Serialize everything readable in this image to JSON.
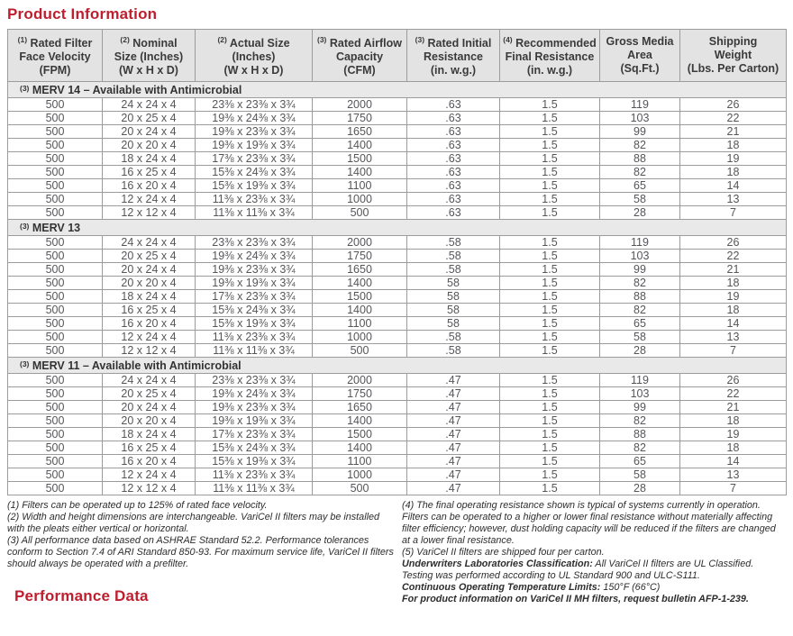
{
  "accent_color": "#be1e2d",
  "page": {
    "title": "Product Information"
  },
  "table": {
    "columns": [
      {
        "sup": "(1)",
        "label": "Rated Filter\nFace Velocity\n(FPM)"
      },
      {
        "sup": "(2)",
        "label": "Nominal\nSize (Inches)\n(W x H x D)"
      },
      {
        "sup": "(2)",
        "label": "Actual Size\n(Inches)\n(W x H x D)"
      },
      {
        "sup": "(3)",
        "label": "Rated Airflow\nCapacity\n(CFM)"
      },
      {
        "sup": "(3)",
        "label": "Rated Initial\nResistance\n(in. w.g.)"
      },
      {
        "sup": "(4)",
        "label": "Recommended\nFinal Resistance\n(in. w.g.)"
      },
      {
        "sup": "",
        "label": "Gross Media\nArea\n(Sq.Ft.)"
      },
      {
        "sup": "",
        "label": "Shipping\nWeight\n(Lbs. Per Carton)"
      }
    ],
    "sections": [
      {
        "sup": "(3)",
        "title": "MERV 14 – Available with Antimicrobial",
        "rows": [
          [
            "500",
            "24 x 24 x 4",
            "23⅜ x 23⅜ x 3¾",
            "2000",
            ".63",
            "1.5",
            "119",
            "26"
          ],
          [
            "500",
            "20 x 25 x 4",
            "19⅜ x 24⅜ x 3¾",
            "1750",
            ".63",
            "1.5",
            "103",
            "22"
          ],
          [
            "500",
            "20 x 24 x 4",
            "19⅜ x 23⅜ x 3¾",
            "1650",
            ".63",
            "1.5",
            "99",
            "21"
          ],
          [
            "500",
            "20 x 20 x 4",
            "19⅜ x 19⅜ x 3¾",
            "1400",
            ".63",
            "1.5",
            "82",
            "18"
          ],
          [
            "500",
            "18 x 24 x 4",
            "17⅜ x 23⅜ x 3¾",
            "1500",
            ".63",
            "1.5",
            "88",
            "19"
          ],
          [
            "500",
            "16 x 25 x 4",
            "15⅜ x 24⅜ x 3¾",
            "1400",
            ".63",
            "1.5",
            "82",
            "18"
          ],
          [
            "500",
            "16 x 20 x 4",
            "15⅜ x 19⅜ x 3¾",
            "1100",
            ".63",
            "1.5",
            "65",
            "14"
          ],
          [
            "500",
            "12 x 24 x 4",
            "11⅜ x 23⅜ x 3¾",
            "1000",
            ".63",
            "1.5",
            "58",
            "13"
          ],
          [
            "500",
            "12 x 12 x 4",
            "11⅜ x 11⅜ x 3¾",
            "500",
            ".63",
            "1.5",
            "28",
            "7"
          ]
        ]
      },
      {
        "sup": "(3)",
        "title": "MERV 13",
        "rows": [
          [
            "500",
            "24 x 24 x 4",
            "23⅜ x 23⅜ x 3¾",
            "2000",
            ".58",
            "1.5",
            "119",
            "26"
          ],
          [
            "500",
            "20 x 25 x 4",
            "19⅜ x 24⅜ x 3¾",
            "1750",
            ".58",
            "1.5",
            "103",
            "22"
          ],
          [
            "500",
            "20 x 24 x 4",
            "19⅜ x 23⅜ x 3¾",
            "1650",
            ".58",
            "1.5",
            "99",
            "21"
          ],
          [
            "500",
            "20 x 20 x 4",
            "19⅜ x 19⅜ x 3¾",
            "1400",
            "58",
            "1.5",
            "82",
            "18"
          ],
          [
            "500",
            "18 x 24 x 4",
            "17⅜ x 23⅜ x 3¾",
            "1500",
            "58",
            "1.5",
            "88",
            "19"
          ],
          [
            "500",
            "16 x 25 x 4",
            "15⅜ x 24⅜ x 3¾",
            "1400",
            "58",
            "1.5",
            "82",
            "18"
          ],
          [
            "500",
            "16 x 20 x 4",
            "15⅜ x 19⅜ x 3¾",
            "1100",
            "58",
            "1.5",
            "65",
            "14"
          ],
          [
            "500",
            "12 x 24 x 4",
            "11⅜ x 23⅜ x 3¾",
            "1000",
            ".58",
            "1.5",
            "58",
            "13"
          ],
          [
            "500",
            "12 x 12 x 4",
            "11⅜ x 11⅜ x 3¾",
            "500",
            ".58",
            "1.5",
            "28",
            "7"
          ]
        ]
      },
      {
        "sup": "(3)",
        "title": "MERV 11 – Available with Antimicrobial",
        "rows": [
          [
            "500",
            "24 x 24 x 4",
            "23⅜ x 23⅜ x 3¾",
            "2000",
            ".47",
            "1.5",
            "119",
            "26"
          ],
          [
            "500",
            "20 x 25 x 4",
            "19⅜ x 24⅜ x 3¾",
            "1750",
            ".47",
            "1.5",
            "103",
            "22"
          ],
          [
            "500",
            "20 x 24 x 4",
            "19⅜ x 23⅜ x 3¾",
            "1650",
            ".47",
            "1.5",
            "99",
            "21"
          ],
          [
            "500",
            "20 x 20 x 4",
            "19⅜ x 19⅜ x 3¾",
            "1400",
            ".47",
            "1.5",
            "82",
            "18"
          ],
          [
            "500",
            "18 x 24 x 4",
            "17⅜ x 23⅜ x 3¾",
            "1500",
            ".47",
            "1.5",
            "88",
            "19"
          ],
          [
            "500",
            "16 x 25 x 4",
            "15⅜ x 24⅜ x 3¾",
            "1400",
            ".47",
            "1.5",
            "82",
            "18"
          ],
          [
            "500",
            "16 x 20 x 4",
            "15⅜ x 19⅜ x 3¾",
            "1100",
            ".47",
            "1.5",
            "65",
            "14"
          ],
          [
            "500",
            "12 x 24 x 4",
            "11⅜ x 23⅜ x 3¾",
            "1000",
            ".47",
            "1.5",
            "58",
            "13"
          ],
          [
            "500",
            "12 x 12 x 4",
            "11⅜ x 11⅜ x 3¾",
            "500",
            ".47",
            "1.5",
            "28",
            "7"
          ]
        ]
      }
    ]
  },
  "footnotes": {
    "left": [
      "(1) Filters can be operated up to 125% of rated face velocity.",
      "(2) Width and height dimensions are interchangeable. VariCel II filters may be installed with the pleats either vertical or horizontal.",
      "(3) All performance data based on ASHRAE Standard 52.2. Performance tolerances conform to Section 7.4 of ARI Standard 850-93. For maximum service life, VariCel II filters should always be operated with a prefilter."
    ],
    "right": [
      {
        "bold": "",
        "text": "(4) The final operating resistance shown is typical of systems currently in operation. Filters can be operated to a higher or lower final resistance without materially affecting filter efficiency; however, dust holding capacity will be reduced if the filters are changed at a lower final resistance."
      },
      {
        "bold": "",
        "text": "(5) VariCel II filters are shipped four per carton."
      },
      {
        "bold": "Underwriters Laboratories Classification:",
        "text": " All VariCel II filters are UL Classified. Testing was performed according to UL Standard 900 and ULC-S111."
      },
      {
        "bold": "Continuous Operating Temperature Limits:",
        "text": " 150°F (66°C)"
      },
      {
        "bold": "For product information on VariCel II MH filters, request bulletin AFP-1-239.",
        "text": ""
      }
    ]
  },
  "footer": {
    "title": "Performance Data"
  }
}
